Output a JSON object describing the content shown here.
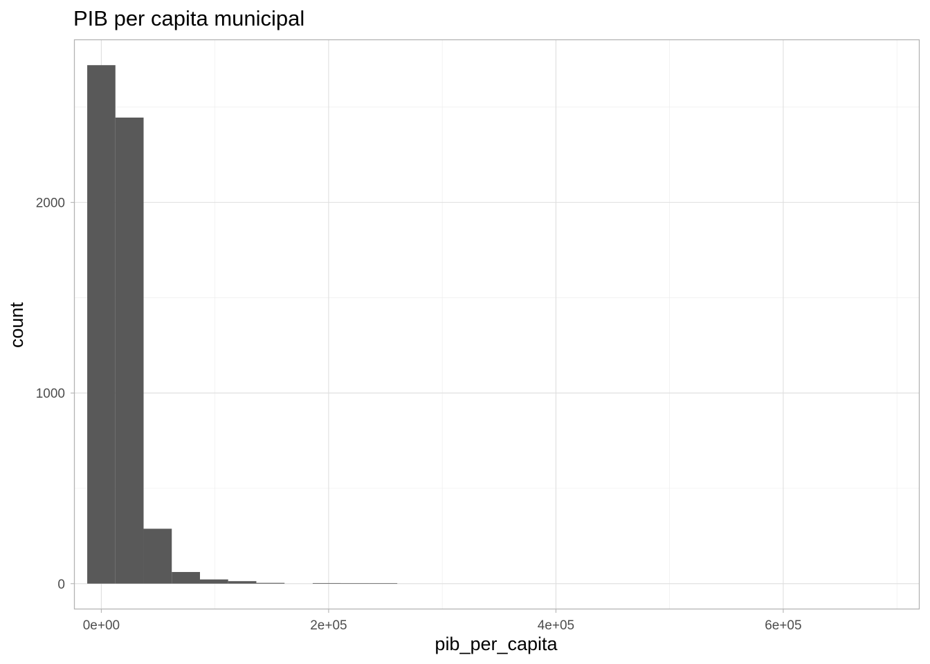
{
  "chart_data": {
    "type": "bar",
    "subtype": "histogram",
    "title": "PIB per capita municipal",
    "xlabel": "pib_per_capita",
    "ylabel": "count",
    "xlim": [
      -24000,
      720000
    ],
    "ylim": [
      -135,
      2855
    ],
    "x_ticks": [
      0,
      200000,
      400000,
      600000
    ],
    "x_tick_labels": [
      "0e+00",
      "2e+05",
      "4e+05",
      "6e+05"
    ],
    "y_ticks": [
      0,
      1000,
      2000
    ],
    "y_tick_labels": [
      "0",
      "1000",
      "2000"
    ],
    "x_minor_ticks": [
      100000,
      300000,
      500000,
      700000
    ],
    "y_minor_ticks": [
      500,
      1500,
      2500
    ],
    "grid": true,
    "bin_width": 24800,
    "bins": [
      {
        "x0": -12400,
        "x1": 12400,
        "count": 2720
      },
      {
        "x0": 12400,
        "x1": 37200,
        "count": 2445
      },
      {
        "x0": 37200,
        "x1": 62000,
        "count": 288
      },
      {
        "x0": 62000,
        "x1": 86800,
        "count": 61
      },
      {
        "x0": 86800,
        "x1": 111600,
        "count": 22
      },
      {
        "x0": 111600,
        "x1": 136400,
        "count": 13
      },
      {
        "x0": 136400,
        "x1": 161200,
        "count": 4
      },
      {
        "x0": 161200,
        "x1": 186000,
        "count": 0
      },
      {
        "x0": 186000,
        "x1": 210800,
        "count": 3
      },
      {
        "x0": 210800,
        "x1": 235600,
        "count": 2
      },
      {
        "x0": 235600,
        "x1": 260400,
        "count": 2
      }
    ],
    "bar_color": "#595959"
  }
}
